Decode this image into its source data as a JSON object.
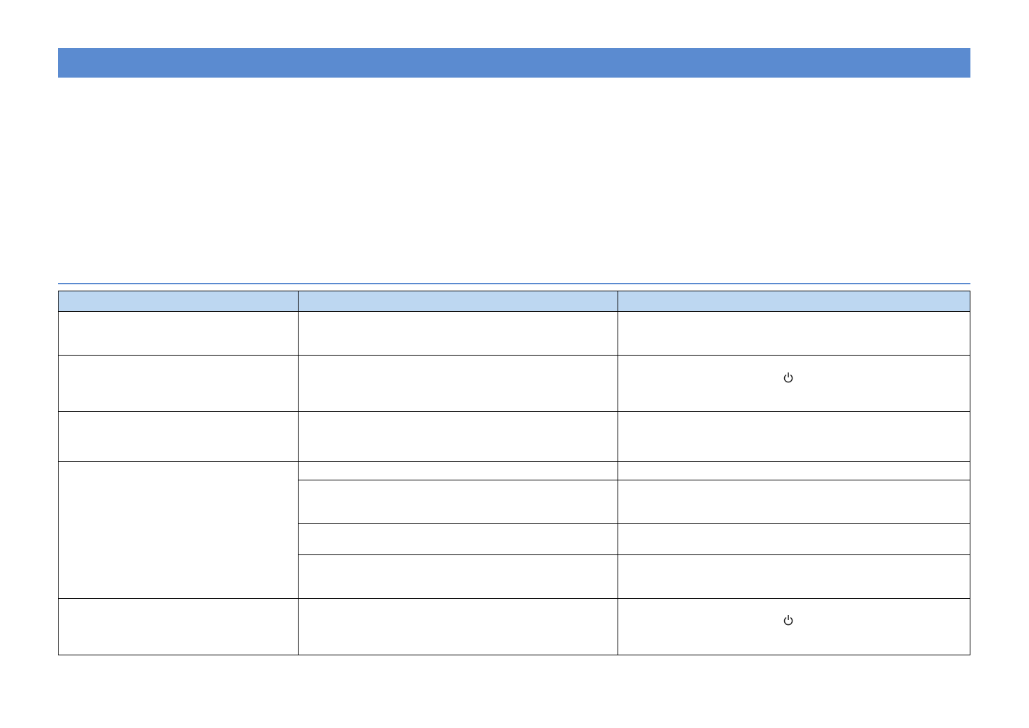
{
  "colors": {
    "title_bar": "#5b8bd0",
    "section_rule": "#5b8bd0",
    "table_header": "#bdd7f1",
    "grid": "#000000"
  },
  "table": {
    "columns": 3,
    "body_rows": 5,
    "icons": [
      "power-icon",
      "power-icon"
    ]
  }
}
